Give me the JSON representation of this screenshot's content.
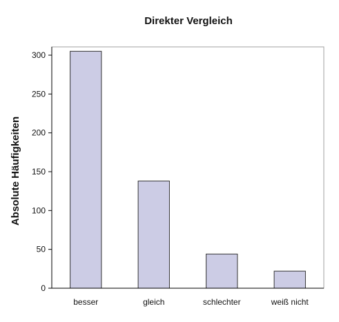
{
  "chart_data": {
    "type": "bar",
    "title": "Direkter Vergleich",
    "xlabel": "",
    "ylabel": "Absolute Häufigkeiten",
    "categories": [
      "besser",
      "gleich",
      "schlechter",
      "weiß nicht"
    ],
    "values": [
      305,
      138,
      44,
      22
    ],
    "ylim": [
      0,
      300
    ],
    "yticks": [
      0,
      50,
      100,
      150,
      200,
      250,
      300
    ],
    "grid": false,
    "legend": "none",
    "bar_color": "#ccccE5",
    "frame_color": "#a0a0a0"
  }
}
